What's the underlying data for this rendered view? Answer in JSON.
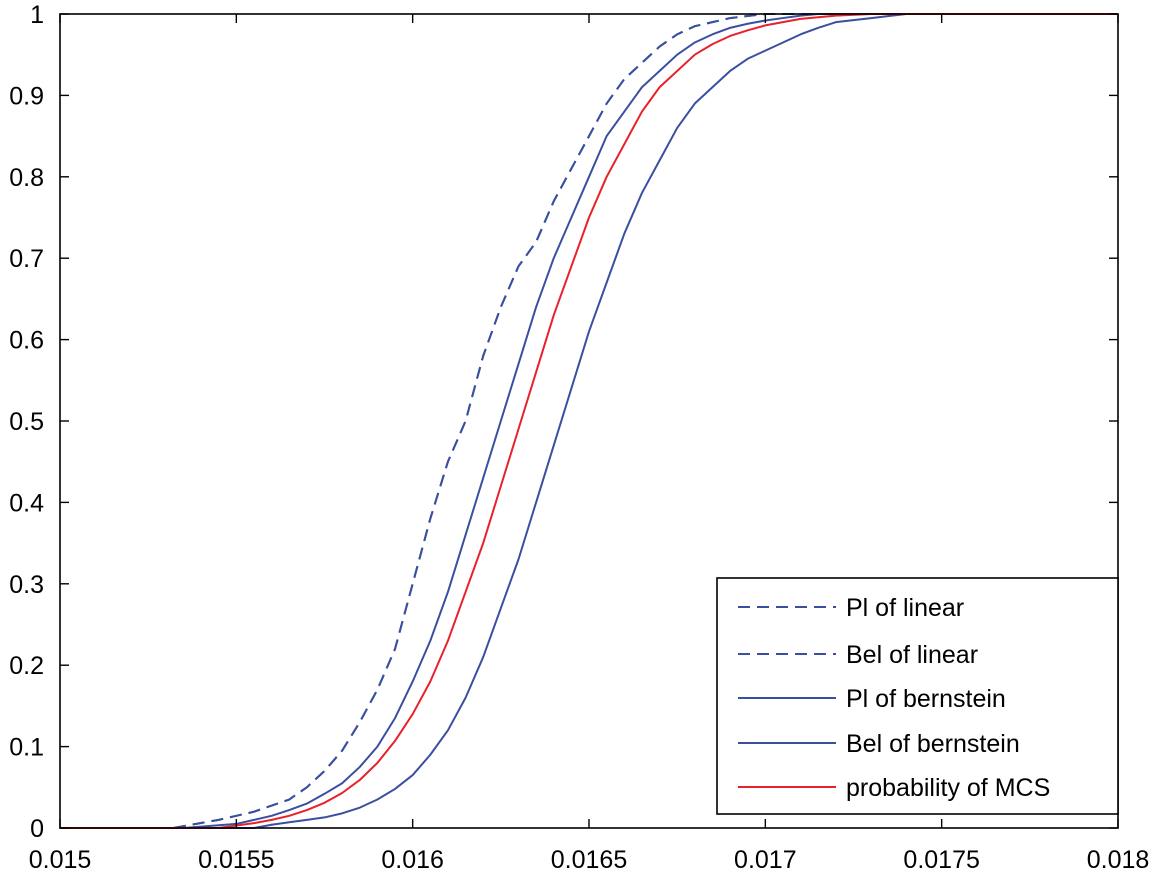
{
  "chart_data": {
    "type": "line",
    "title": "",
    "xlabel": "",
    "ylabel": "",
    "xlim": [
      0.015,
      0.018
    ],
    "ylim": [
      0,
      1
    ],
    "grid": false,
    "legend_position": "bottom-right",
    "x_ticks": [
      0.015,
      0.0155,
      0.016,
      0.0165,
      0.017,
      0.0175,
      0.018
    ],
    "x_tick_labels": [
      "0.015",
      "0.0155",
      "0.016",
      "0.0165",
      "0.017",
      "0.0175",
      "0.018"
    ],
    "y_ticks": [
      0,
      0.1,
      0.2,
      0.3,
      0.4,
      0.5,
      0.6,
      0.7,
      0.8,
      0.9,
      1
    ],
    "y_tick_labels": [
      "0",
      "0.1",
      "0.2",
      "0.3",
      "0.4",
      "0.5",
      "0.6",
      "0.7",
      "0.8",
      "0.9",
      "1"
    ],
    "series": [
      {
        "name": "Pl of linear",
        "color": "#3a4fa0",
        "style": "dashed",
        "x": [
          0.015,
          0.01532,
          0.01545,
          0.0155,
          0.01555,
          0.01565,
          0.0157,
          0.01575,
          0.0158,
          0.01585,
          0.0159,
          0.01595,
          0.016,
          0.01605,
          0.0161,
          0.01615,
          0.0162,
          0.01625,
          0.0163,
          0.01635,
          0.0164,
          0.01645,
          0.0165,
          0.01655,
          0.0166,
          0.01665,
          0.0167,
          0.01675,
          0.0168,
          0.01685,
          0.0169,
          0.017,
          0.018
        ],
        "y": [
          0,
          0,
          0.01,
          0.015,
          0.02,
          0.035,
          0.05,
          0.07,
          0.095,
          0.13,
          0.17,
          0.22,
          0.3,
          0.38,
          0.45,
          0.5,
          0.58,
          0.64,
          0.69,
          0.72,
          0.77,
          0.81,
          0.85,
          0.89,
          0.92,
          0.94,
          0.96,
          0.975,
          0.985,
          0.99,
          0.995,
          1,
          1
        ]
      },
      {
        "name": "Bel of linear",
        "color": "#3a4fa0",
        "style": "dashed",
        "x": [
          0.015,
          0.01532,
          0.01545,
          0.0155,
          0.01555,
          0.01565,
          0.0157,
          0.01575,
          0.0158,
          0.01585,
          0.0159,
          0.01595,
          0.016,
          0.01605,
          0.0161,
          0.01615,
          0.0162,
          0.01625,
          0.0163,
          0.01635,
          0.0164,
          0.01645,
          0.0165,
          0.01655,
          0.0166,
          0.01665,
          0.0167,
          0.01675,
          0.0168,
          0.01685,
          0.0169,
          0.017,
          0.018
        ],
        "y": [
          0,
          0,
          0.01,
          0.015,
          0.02,
          0.035,
          0.05,
          0.07,
          0.095,
          0.13,
          0.17,
          0.22,
          0.3,
          0.38,
          0.45,
          0.5,
          0.58,
          0.64,
          0.69,
          0.72,
          0.77,
          0.81,
          0.85,
          0.89,
          0.92,
          0.94,
          0.96,
          0.975,
          0.985,
          0.99,
          0.995,
          1,
          1
        ]
      },
      {
        "name": "Pl of bernstein",
        "color": "#3a4fa0",
        "style": "solid",
        "x": [
          0.015,
          0.01535,
          0.0155,
          0.01555,
          0.0156,
          0.01565,
          0.0157,
          0.01575,
          0.0158,
          0.01585,
          0.0159,
          0.01595,
          0.016,
          0.01605,
          0.0161,
          0.01615,
          0.0162,
          0.01625,
          0.0163,
          0.01635,
          0.0164,
          0.01645,
          0.0165,
          0.01655,
          0.0166,
          0.01665,
          0.0167,
          0.01675,
          0.0168,
          0.01685,
          0.0169,
          0.01695,
          0.017,
          0.01705,
          0.0171,
          0.01715,
          0.018
        ],
        "y": [
          0,
          0,
          0.005,
          0.01,
          0.015,
          0.022,
          0.03,
          0.042,
          0.055,
          0.075,
          0.1,
          0.135,
          0.18,
          0.23,
          0.29,
          0.36,
          0.43,
          0.5,
          0.57,
          0.64,
          0.7,
          0.75,
          0.8,
          0.85,
          0.88,
          0.91,
          0.93,
          0.95,
          0.965,
          0.975,
          0.983,
          0.988,
          0.992,
          0.995,
          0.998,
          1,
          1
        ]
      },
      {
        "name": "Bel of bernstein",
        "color": "#3a4fa0",
        "style": "solid",
        "x": [
          0.015,
          0.01555,
          0.0156,
          0.01565,
          0.0157,
          0.01575,
          0.0158,
          0.01585,
          0.0159,
          0.01595,
          0.016,
          0.01605,
          0.0161,
          0.01615,
          0.0162,
          0.01625,
          0.0163,
          0.01635,
          0.0164,
          0.01645,
          0.0165,
          0.01655,
          0.0166,
          0.01665,
          0.0167,
          0.01675,
          0.0168,
          0.01685,
          0.0169,
          0.01695,
          0.017,
          0.01705,
          0.0171,
          0.01715,
          0.0172,
          0.0173,
          0.0174,
          0.018
        ],
        "y": [
          0,
          0,
          0.004,
          0.007,
          0.01,
          0.013,
          0.018,
          0.025,
          0.035,
          0.048,
          0.065,
          0.09,
          0.12,
          0.16,
          0.21,
          0.27,
          0.33,
          0.4,
          0.47,
          0.54,
          0.61,
          0.67,
          0.73,
          0.78,
          0.82,
          0.86,
          0.89,
          0.91,
          0.93,
          0.945,
          0.955,
          0.965,
          0.975,
          0.983,
          0.99,
          0.995,
          1,
          1
        ]
      },
      {
        "name": "probability of MCS",
        "color": "#e8212a",
        "style": "solid",
        "x": [
          0.015,
          0.01545,
          0.0155,
          0.01555,
          0.0156,
          0.01565,
          0.0157,
          0.01575,
          0.0158,
          0.01585,
          0.0159,
          0.01595,
          0.016,
          0.01605,
          0.0161,
          0.01615,
          0.0162,
          0.01625,
          0.0163,
          0.01635,
          0.0164,
          0.01645,
          0.0165,
          0.01655,
          0.0166,
          0.01665,
          0.0167,
          0.01675,
          0.0168,
          0.01685,
          0.0169,
          0.01695,
          0.017,
          0.01705,
          0.0171,
          0.0172,
          0.0173,
          0.018
        ],
        "y": [
          0,
          0,
          0.003,
          0.006,
          0.01,
          0.015,
          0.022,
          0.031,
          0.043,
          0.059,
          0.08,
          0.107,
          0.14,
          0.18,
          0.23,
          0.29,
          0.35,
          0.42,
          0.49,
          0.56,
          0.63,
          0.69,
          0.75,
          0.8,
          0.84,
          0.88,
          0.91,
          0.93,
          0.95,
          0.963,
          0.973,
          0.98,
          0.986,
          0.99,
          0.994,
          0.998,
          1,
          1
        ]
      }
    ]
  }
}
